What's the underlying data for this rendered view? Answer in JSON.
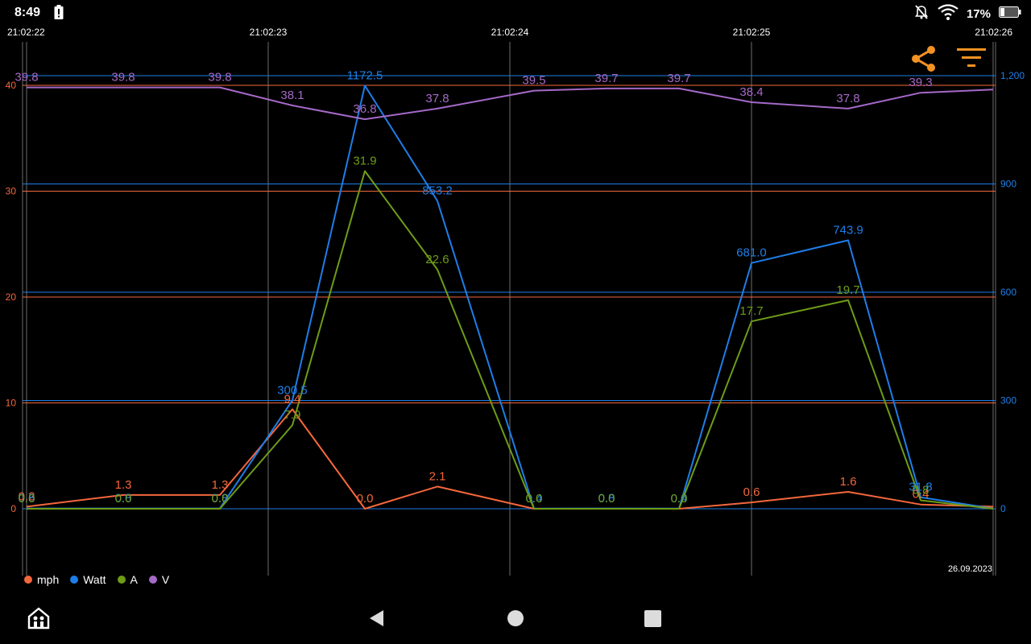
{
  "status_bar": {
    "time": "8:49",
    "battery_percent": "17%",
    "icons": [
      "battery-alert-icon",
      "notifications-off-icon",
      "wifi-icon",
      "battery-icon"
    ]
  },
  "toolbar": {
    "share_icon": "share-icon",
    "filter_icon": "filter-icon",
    "accent": "#f39322"
  },
  "date_label": "26.09.2023",
  "nav_bar": {
    "icons": [
      "app-home-icon",
      "back-icon",
      "home-icon",
      "recents-icon"
    ]
  },
  "chart_data": {
    "type": "line",
    "x_ticks": [
      "21:02:22",
      "21:02:23",
      "21:02:24",
      "21:02:25",
      "21:02:26"
    ],
    "x_range": [
      "21:02:22.0",
      "21:02:26.0"
    ],
    "x": [
      "21:02:22.0",
      "21:02:22.4",
      "21:02:22.8",
      "21:02:23.1",
      "21:02:23.4",
      "21:02:23.7",
      "21:02:24.1",
      "21:02:24.4",
      "21:02:24.7",
      "21:02:25.0",
      "21:02:25.4",
      "21:02:25.7",
      "21:02:26.0"
    ],
    "y_left": {
      "ticks": [
        "0",
        "10",
        "20",
        "30",
        "40"
      ],
      "range": [
        -6.3,
        44.8
      ],
      "color": "#f4673c"
    },
    "y_right": {
      "ticks": [
        "0",
        "300",
        "600",
        "900",
        "1,200"
      ],
      "range": [
        -214,
        1340
      ],
      "color": "#1e7ee8"
    },
    "grid": true,
    "legend_position": "bottom-left",
    "series": [
      {
        "name": "mph",
        "axis": "left",
        "color": "#f4673c",
        "values": [
          0.2,
          1.3,
          1.3,
          9.4,
          0.0,
          2.1,
          0.0,
          0.0,
          0.0,
          0.6,
          1.6,
          0.4,
          0.2
        ],
        "labels": [
          "0.2",
          "1.3",
          "1.3",
          "9.4",
          "0.0",
          "2.1",
          "",
          "",
          "",
          "0.6",
          "1.6",
          "0.4",
          ""
        ]
      },
      {
        "name": "Watt",
        "axis": "right",
        "color": "#1e7ee8",
        "values": [
          0.8,
          0.8,
          0.8,
          300.5,
          1172.5,
          853.2,
          0.4,
          0.8,
          0.4,
          681.0,
          743.9,
          31.8,
          0.4
        ],
        "labels": [
          "0.8",
          "0.8",
          "0.8",
          "300.5",
          "1172.5",
          "853.2",
          "0.4",
          "0.8",
          "0.4",
          "681.0",
          "743.9",
          "31.8",
          ""
        ]
      },
      {
        "name": "A",
        "axis": "left",
        "color": "#6e9c17",
        "values": [
          0.0,
          0.0,
          0.0,
          7.9,
          31.9,
          22.6,
          0.0,
          0.0,
          0.0,
          17.7,
          19.7,
          0.8,
          0.0
        ],
        "labels": [
          "0.0",
          "0.0",
          "0.0",
          "7.9",
          "31.9",
          "22.6",
          "0.0",
          "0.0",
          "0.0",
          "17.7",
          "19.7",
          "0.8",
          ""
        ]
      },
      {
        "name": "V",
        "axis": "left",
        "color": "#a569c8",
        "values": [
          39.8,
          39.8,
          39.8,
          38.1,
          36.8,
          37.8,
          39.5,
          39.7,
          39.7,
          38.4,
          37.8,
          39.3,
          39.6
        ],
        "labels": [
          "39.8",
          "39.8",
          "39.8",
          "38.1",
          "36.8",
          "37.8",
          "39.5",
          "39.7",
          "39.7",
          "38.4",
          "37.8",
          "39.3",
          ""
        ]
      }
    ]
  }
}
